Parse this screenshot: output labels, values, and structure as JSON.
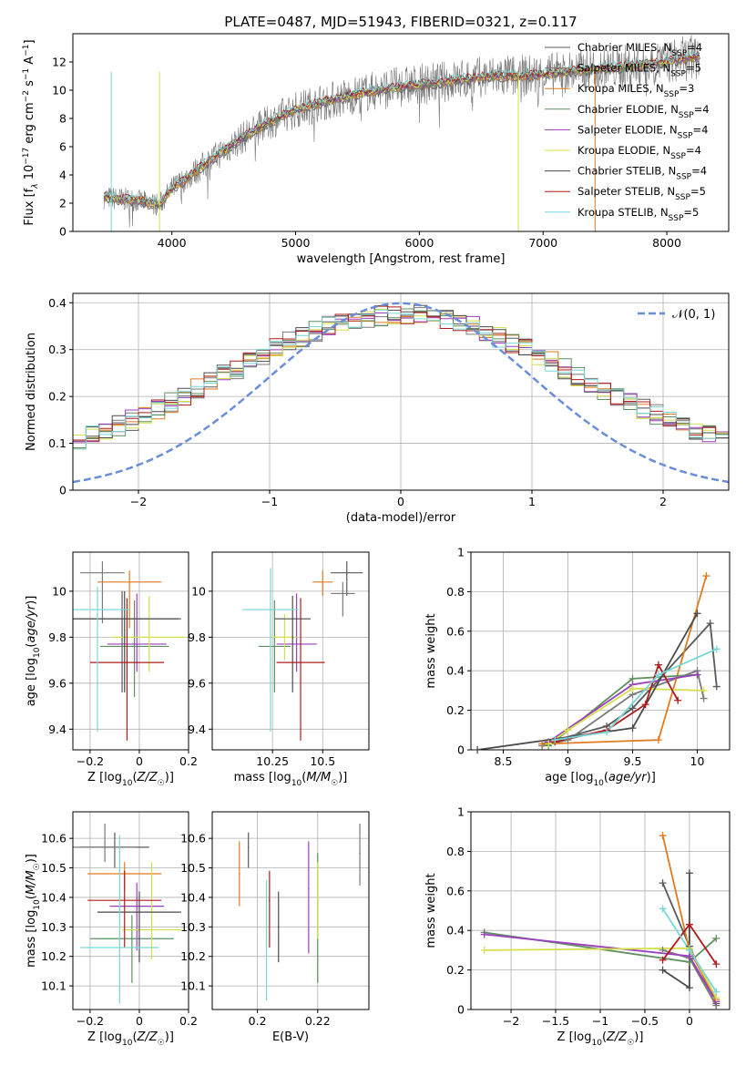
{
  "figure": {
    "title": "PLATE=0487, MJD=51943, FIBERID=0321, z=0.117",
    "models": [
      {
        "name": "Chabrier MILES, N_SSP=4",
        "color": "#5a5a5a"
      },
      {
        "name": "Salpeter MILES, N_SSP=5",
        "color": "#7a7a7a"
      },
      {
        "name": "Kroupa MILES, N_SSP=3",
        "color": "#e07b1e"
      },
      {
        "name": "Chabrier ELODIE, N_SSP=4",
        "color": "#5f8f5f"
      },
      {
        "name": "Salpeter ELODIE, N_SSP=4",
        "color": "#9b3fbf"
      },
      {
        "name": "Kroupa ELODIE, N_SSP=4",
        "color": "#d4e04a"
      },
      {
        "name": "Chabrier STELIB, N_SSP=4",
        "color": "#4a4a4a"
      },
      {
        "name": "Salpeter STELIB, N_SSP=5",
        "color": "#b01a1a"
      },
      {
        "name": "Kroupa STELIB, N_SSP=5",
        "color": "#79d6d6"
      }
    ]
  },
  "chart_data": [
    {
      "id": "spectrum",
      "type": "line",
      "xlabel": "wavelength [Angstrom, rest frame]",
      "ylabel": "Flux [f_λ 10^-17 erg cm^-2 s^-1 A^-1]",
      "xlim": [
        3200,
        8500
      ],
      "ylim": [
        0,
        14
      ],
      "xticks": [
        4000,
        5000,
        6000,
        7000,
        8000
      ],
      "yticks": [
        0,
        2,
        4,
        6,
        8,
        10,
        12
      ],
      "x": [
        3450,
        3700,
        3900,
        4000,
        4200,
        4400,
        4600,
        4800,
        5000,
        5200,
        5400,
        5600,
        5800,
        6000,
        6200,
        6400,
        6600,
        6800,
        7000,
        7200,
        7400,
        7600,
        7800,
        8000,
        8250
      ],
      "y": [
        2.4,
        2.2,
        1.9,
        3.0,
        4.3,
        5.6,
        6.8,
        7.8,
        8.6,
        9.1,
        9.5,
        9.9,
        10.2,
        10.4,
        10.6,
        10.8,
        11.0,
        11.0,
        11.1,
        11.3,
        11.5,
        11.6,
        11.8,
        12.0,
        12.4
      ],
      "grid": false
    },
    {
      "id": "residuals",
      "type": "line",
      "xlabel": "(data-model)/error",
      "ylabel": "Normed distribution",
      "xlim": [
        -2.5,
        2.5
      ],
      "ylim": [
        0,
        0.42
      ],
      "xticks": [
        -2,
        -1,
        0,
        1,
        2
      ],
      "yticks": [
        0.0,
        0.1,
        0.2,
        0.3,
        0.4
      ],
      "legend": "$\\mathcal{N}(0,1)$",
      "legend_position": "top-right",
      "grid": true,
      "bin_width": 0.1
    },
    {
      "id": "age-vs-Z",
      "type": "scatter",
      "xlabel": "Z [log10(Z/Z☉)]",
      "ylabel": "age [log10(age/yr)]",
      "xlim": [
        -0.27,
        0.2
      ],
      "ylim": [
        9.31,
        10.17
      ],
      "xticks": [
        -0.2,
        0.0,
        0.2
      ],
      "yticks": [
        9.4,
        9.6,
        9.8,
        10.0
      ],
      "grid": true,
      "points": [
        {
          "model": 0,
          "x": -0.07,
          "y": 9.88,
          "xerr": 0.24,
          "yerr": [
            0.32,
            0.12
          ]
        },
        {
          "model": 1,
          "x": -0.15,
          "y": 10.08,
          "xerr": 0.09,
          "yerr": [
            0.22,
            0.05
          ]
        },
        {
          "model": 2,
          "x": -0.04,
          "y": 10.04,
          "xerr": 0.13,
          "yerr": [
            0.2,
            0.05
          ]
        },
        {
          "model": 3,
          "x": -0.02,
          "y": 9.76,
          "xerr": 0.14,
          "yerr": [
            0.22,
            0.2
          ]
        },
        {
          "model": 4,
          "x": -0.01,
          "y": 9.77,
          "xerr": 0.12,
          "yerr": [
            0.12,
            0.22
          ]
        },
        {
          "model": 5,
          "x": 0.04,
          "y": 9.8,
          "xerr": 0.15,
          "yerr": [
            0.15,
            0.18
          ]
        },
        {
          "model": 6,
          "x": -0.06,
          "y": 9.88,
          "xerr": 0.22,
          "yerr": [
            0.32,
            0.12
          ]
        },
        {
          "model": 7,
          "x": -0.05,
          "y": 9.69,
          "xerr": 0.15,
          "yerr": [
            0.34,
            0.28
          ]
        },
        {
          "model": 8,
          "x": -0.17,
          "y": 9.92,
          "xerr": 0.13,
          "yerr": [
            0.53,
            0.1
          ]
        }
      ]
    },
    {
      "id": "age-vs-mass",
      "type": "scatter",
      "xlabel": "mass [log10(M/M☉)]",
      "ylabel": "",
      "xlim": [
        9.95,
        10.73
      ],
      "ylim": [
        9.31,
        10.17
      ],
      "xticks": [
        10.25,
        10.5
      ],
      "yticks": [
        9.4,
        9.6,
        9.8,
        10.0
      ],
      "grid": true,
      "points": [
        {
          "model": 0,
          "x": 10.62,
          "y": 10.08,
          "xerr": 0.08,
          "yerr": [
            0.1,
            0.05
          ]
        },
        {
          "model": 1,
          "x": 10.6,
          "y": 9.99,
          "xerr": 0.06,
          "yerr": [
            0.1,
            0.05
          ]
        },
        {
          "model": 2,
          "x": 10.5,
          "y": 10.04,
          "xerr": 0.05,
          "yerr": [
            0.06,
            0.05
          ]
        },
        {
          "model": 3,
          "x": 10.26,
          "y": 9.76,
          "xerr": 0.08,
          "yerr": [
            0.2,
            0.2
          ]
        },
        {
          "model": 4,
          "x": 10.37,
          "y": 9.77,
          "xerr": 0.1,
          "yerr": [
            0.12,
            0.22
          ]
        },
        {
          "model": 5,
          "x": 10.31,
          "y": 9.8,
          "xerr": 0.06,
          "yerr": [
            0.1,
            0.1
          ]
        },
        {
          "model": 6,
          "x": 10.35,
          "y": 9.88,
          "xerr": 0.09,
          "yerr": [
            0.32,
            0.1
          ]
        },
        {
          "model": 7,
          "x": 10.39,
          "y": 9.69,
          "xerr": 0.12,
          "yerr": [
            0.34,
            0.28
          ]
        },
        {
          "model": 8,
          "x": 10.24,
          "y": 9.92,
          "xerr": 0.14,
          "yerr": [
            0.53,
            0.18
          ]
        }
      ]
    },
    {
      "id": "mass-weight-vs-age",
      "type": "line",
      "xlabel": "age [log10(age/yr)]",
      "ylabel": "mass weight",
      "xlim": [
        8.25,
        10.25
      ],
      "ylim": [
        0,
        1.0
      ],
      "xticks": [
        8.5,
        9.0,
        9.5,
        10.0
      ],
      "yticks": [
        0.0,
        0.2,
        0.4,
        0.6,
        0.8,
        1.0
      ],
      "grid": true,
      "series": [
        {
          "model": 0,
          "x": [
            8.8,
            9.3,
            9.5,
            10.1,
            10.15
          ],
          "y": [
            0.03,
            0.12,
            0.21,
            0.64,
            0.32
          ]
        },
        {
          "model": 1,
          "x": [
            8.8,
            9.0,
            9.5,
            10.0,
            10.05
          ],
          "y": [
            0.02,
            0.05,
            0.28,
            0.4,
            0.26
          ]
        },
        {
          "model": 2,
          "x": [
            8.8,
            9.7,
            10.07
          ],
          "y": [
            0.03,
            0.05,
            0.88
          ]
        },
        {
          "model": 3,
          "x": [
            8.85,
            9.5,
            10.0
          ],
          "y": [
            0.02,
            0.36,
            0.38
          ]
        },
        {
          "model": 4,
          "x": [
            8.85,
            9.5,
            10.0
          ],
          "y": [
            0.04,
            0.33,
            0.38
          ]
        },
        {
          "model": 5,
          "x": [
            8.85,
            9.0,
            9.5,
            10.05
          ],
          "y": [
            0.03,
            0.1,
            0.31,
            0.3
          ]
        },
        {
          "model": 6,
          "x": [
            8.3,
            9.5,
            10.0
          ],
          "y": [
            0.0,
            0.11,
            0.69
          ]
        },
        {
          "model": 7,
          "x": [
            8.9,
            9.3,
            9.6,
            9.7,
            9.85
          ],
          "y": [
            0.04,
            0.1,
            0.23,
            0.43,
            0.25
          ]
        },
        {
          "model": 8,
          "x": [
            8.9,
            9.3,
            9.7,
            10.15
          ],
          "y": [
            0.05,
            0.09,
            0.38,
            0.51
          ]
        }
      ]
    },
    {
      "id": "mass-vs-Z",
      "type": "scatter",
      "xlabel": "Z [log10(Z/Z☉)]",
      "ylabel": "mass [log10(M/M☉)]",
      "xlim": [
        -0.27,
        0.2
      ],
      "ylim": [
        10.02,
        10.69
      ],
      "xticks": [
        -0.2,
        0.0,
        0.2
      ],
      "yticks": [
        10.1,
        10.2,
        10.3,
        10.4,
        10.5,
        10.6
      ],
      "grid": true,
      "points": [
        {
          "model": 0,
          "x": -0.1,
          "y": 10.57,
          "xerr": 0.14,
          "yerr": [
            0.07,
            0.05
          ]
        },
        {
          "model": 1,
          "x": -0.14,
          "y": 10.57,
          "xerr": 0.13,
          "yerr": [
            0.05,
            0.08
          ]
        },
        {
          "model": 2,
          "x": -0.06,
          "y": 10.48,
          "xerr": 0.15,
          "yerr": [
            0.06,
            0.04
          ]
        },
        {
          "model": 3,
          "x": -0.03,
          "y": 10.26,
          "xerr": 0.17,
          "yerr": [
            0.15,
            0.08
          ]
        },
        {
          "model": 4,
          "x": -0.01,
          "y": 10.37,
          "xerr": 0.11,
          "yerr": [
            0.15,
            0.08
          ]
        },
        {
          "model": 5,
          "x": 0.05,
          "y": 10.29,
          "xerr": 0.12,
          "yerr": [
            0.1,
            0.23
          ]
        },
        {
          "model": 6,
          "x": 0.0,
          "y": 10.35,
          "xerr": 0.17,
          "yerr": [
            0.17,
            0.07
          ]
        },
        {
          "model": 7,
          "x": -0.06,
          "y": 10.39,
          "xerr": 0.15,
          "yerr": [
            0.16,
            0.1
          ]
        },
        {
          "model": 8,
          "x": -0.08,
          "y": 10.23,
          "xerr": 0.16,
          "yerr": [
            0.19,
            0.38
          ]
        }
      ]
    },
    {
      "id": "mass-vs-EBV",
      "type": "scatter",
      "xlabel": "E(B-V)",
      "ylabel": "",
      "xlim": [
        0.185,
        0.237
      ],
      "ylim": [
        10.02,
        10.69
      ],
      "xticks": [
        0.2,
        0.22
      ],
      "yticks": [
        10.1,
        10.2,
        10.3,
        10.4,
        10.5,
        10.6
      ],
      "grid": true,
      "points": [
        {
          "model": 0,
          "x": 0.197,
          "y": 10.57,
          "yerr": [
            0.07,
            0.05
          ]
        },
        {
          "model": 1,
          "x": 0.234,
          "y": 10.55,
          "yerr": [
            0.11,
            0.1
          ]
        },
        {
          "model": 2,
          "x": 0.194,
          "y": 10.48,
          "yerr": [
            0.11,
            0.11
          ]
        },
        {
          "model": 3,
          "x": 0.22,
          "y": 10.33,
          "yerr": [
            0.22,
            0.22
          ]
        },
        {
          "model": 4,
          "x": 0.217,
          "y": 10.43,
          "yerr": [
            0.22,
            0.16
          ]
        },
        {
          "model": 5,
          "x": 0.22,
          "y": 10.4,
          "yerr": [
            0.14,
            0.12
          ]
        },
        {
          "model": 6,
          "x": 0.207,
          "y": 10.3,
          "yerr": [
            0.12,
            0.12
          ]
        },
        {
          "model": 7,
          "x": 0.204,
          "y": 10.39,
          "yerr": [
            0.16,
            0.1
          ]
        },
        {
          "model": 8,
          "x": 0.203,
          "y": 10.25,
          "yerr": [
            0.2,
            0.21
          ]
        }
      ]
    },
    {
      "id": "mass-weight-vs-Z",
      "type": "line",
      "xlabel": "Z [log10(Z/Z☉)]",
      "ylabel": "mass weight",
      "xlim": [
        -2.45,
        0.45
      ],
      "ylim": [
        0,
        1.0
      ],
      "xticks": [
        -2.0,
        -1.5,
        -1.0,
        -0.5,
        0.0
      ],
      "yticks": [
        0.0,
        0.2,
        0.4,
        0.6,
        0.8,
        1.0
      ],
      "grid": true,
      "series": [
        {
          "model": 0,
          "x": [
            -0.3,
            0.0,
            0.3
          ],
          "y": [
            0.64,
            0.32,
            0.03
          ]
        },
        {
          "model": 1,
          "x": [
            -0.3,
            0.0,
            0.3
          ],
          "y": [
            0.3,
            0.26,
            0.02
          ]
        },
        {
          "model": 2,
          "x": [
            -0.3,
            0.0,
            0.3
          ],
          "y": [
            0.88,
            0.3,
            0.05
          ]
        },
        {
          "model": 3,
          "x": [
            -2.3,
            0.0,
            0.3
          ],
          "y": [
            0.39,
            0.24,
            0.36
          ]
        },
        {
          "model": 4,
          "x": [
            -2.3,
            0.0,
            0.3
          ],
          "y": [
            0.38,
            0.27,
            0.04
          ]
        },
        {
          "model": 5,
          "x": [
            -2.3,
            0.0,
            0.3
          ],
          "y": [
            0.3,
            0.31,
            0.06
          ]
        },
        {
          "model": 6,
          "x": [
            -0.3,
            0.0,
            0.0
          ],
          "y": [
            0.2,
            0.11,
            0.69
          ]
        },
        {
          "model": 7,
          "x": [
            -0.3,
            0.0,
            0.3
          ],
          "y": [
            0.25,
            0.43,
            0.23
          ]
        },
        {
          "model": 8,
          "x": [
            -0.3,
            0.0,
            0.3
          ],
          "y": [
            0.51,
            0.3,
            0.09
          ]
        }
      ]
    }
  ]
}
